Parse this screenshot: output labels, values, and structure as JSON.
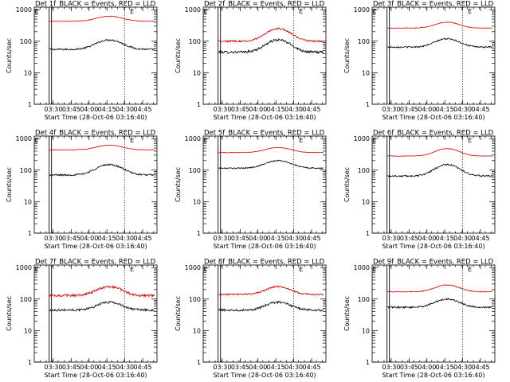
{
  "colors": {
    "events": "#000000",
    "lld": "#dd0000",
    "background": "#ffffff"
  },
  "shared": {
    "title_suffix": "BLACK = Events, RED = LLD",
    "ylabel": "Counts/sec",
    "xlabel": "Start Time (28-Oct-06 03:16:40)",
    "yscale": "log",
    "yticks": [
      1,
      10,
      100,
      1000
    ],
    "ytick_labels": [
      "1",
      "10",
      "100",
      "1000"
    ],
    "xticks": [
      "03:30",
      "03:45",
      "04:00",
      "04:15",
      "04:30",
      "04:45"
    ],
    "xtick_minutes": [
      0,
      15,
      30,
      45,
      60,
      75
    ],
    "x_range_minutes": [
      -16,
      87
    ],
    "solid_marks_minutes": [
      -3.5,
      -1.5
    ],
    "dotted_mark_minutes": 60,
    "marker_labels": [
      "E",
      "E"
    ],
    "marker_minutes": [
      -14,
      66
    ]
  },
  "chart_data": [
    {
      "type": "line",
      "title": "Det 1f",
      "ylim": [
        1,
        1200
      ],
      "series": [
        {
          "name": "Events",
          "base": 55,
          "peak": 110,
          "peak_min": 47,
          "width": 14,
          "noise": 0.06
        },
        {
          "name": "LLD",
          "base": 430,
          "peak": 620,
          "peak_min": 47,
          "width": 14,
          "noise": 0.02
        }
      ]
    },
    {
      "type": "line",
      "title": "Det 2f",
      "ylim": [
        1,
        1200
      ],
      "series": [
        {
          "name": "Events",
          "base": 45,
          "peak": 110,
          "peak_min": 47,
          "width": 13,
          "noise": 0.09
        },
        {
          "name": "LLD",
          "base": 100,
          "peak": 250,
          "peak_min": 47,
          "width": 13,
          "noise": 0.06
        }
      ]
    },
    {
      "type": "line",
      "title": "Det 3f",
      "ylim": [
        1,
        1200
      ],
      "series": [
        {
          "name": "Events",
          "base": 65,
          "peak": 120,
          "peak_min": 47,
          "width": 13,
          "noise": 0.05
        },
        {
          "name": "LLD",
          "base": 260,
          "peak": 400,
          "peak_min": 47,
          "width": 13,
          "noise": 0.02
        }
      ]
    },
    {
      "type": "line",
      "title": "Det 4f",
      "ylim": [
        1,
        1200
      ],
      "series": [
        {
          "name": "Events",
          "base": 70,
          "peak": 150,
          "peak_min": 47,
          "width": 14,
          "noise": 0.06
        },
        {
          "name": "LLD",
          "base": 440,
          "peak": 620,
          "peak_min": 47,
          "width": 14,
          "noise": 0.02
        }
      ]
    },
    {
      "type": "line",
      "title": "Det 5f",
      "ylim": [
        1,
        1200
      ],
      "series": [
        {
          "name": "Events",
          "base": 115,
          "peak": 200,
          "peak_min": 47,
          "width": 14,
          "noise": 0.04
        },
        {
          "name": "LLD",
          "base": 360,
          "peak": 520,
          "peak_min": 47,
          "width": 14,
          "noise": 0.02
        }
      ]
    },
    {
      "type": "line",
      "title": "Det 6f",
      "ylim": [
        1,
        1200
      ],
      "series": [
        {
          "name": "Events",
          "base": 65,
          "peak": 150,
          "peak_min": 47,
          "width": 13,
          "noise": 0.06
        },
        {
          "name": "LLD",
          "base": 280,
          "peak": 480,
          "peak_min": 47,
          "width": 13,
          "noise": 0.02
        }
      ]
    },
    {
      "type": "line",
      "title": "Det 7f",
      "ylim": [
        1,
        1200
      ],
      "series": [
        {
          "name": "Events",
          "base": 45,
          "peak": 80,
          "peak_min": 47,
          "width": 13,
          "noise": 0.08
        },
        {
          "name": "LLD",
          "base": 130,
          "peak": 250,
          "peak_min": 47,
          "width": 13,
          "noise": 0.09
        }
      ]
    },
    {
      "type": "line",
      "title": "Det 8f",
      "ylim": [
        1,
        1200
      ],
      "series": [
        {
          "name": "Events",
          "base": 45,
          "peak": 80,
          "peak_min": 47,
          "width": 13,
          "noise": 0.08
        },
        {
          "name": "LLD",
          "base": 140,
          "peak": 250,
          "peak_min": 47,
          "width": 13,
          "noise": 0.06
        }
      ]
    },
    {
      "type": "line",
      "title": "Det 9f",
      "ylim": [
        1,
        1200
      ],
      "series": [
        {
          "name": "Events",
          "base": 55,
          "peak": 100,
          "peak_min": 47,
          "width": 13,
          "noise": 0.06
        },
        {
          "name": "LLD",
          "base": 170,
          "peak": 280,
          "peak_min": 47,
          "width": 13,
          "noise": 0.03
        }
      ]
    }
  ]
}
